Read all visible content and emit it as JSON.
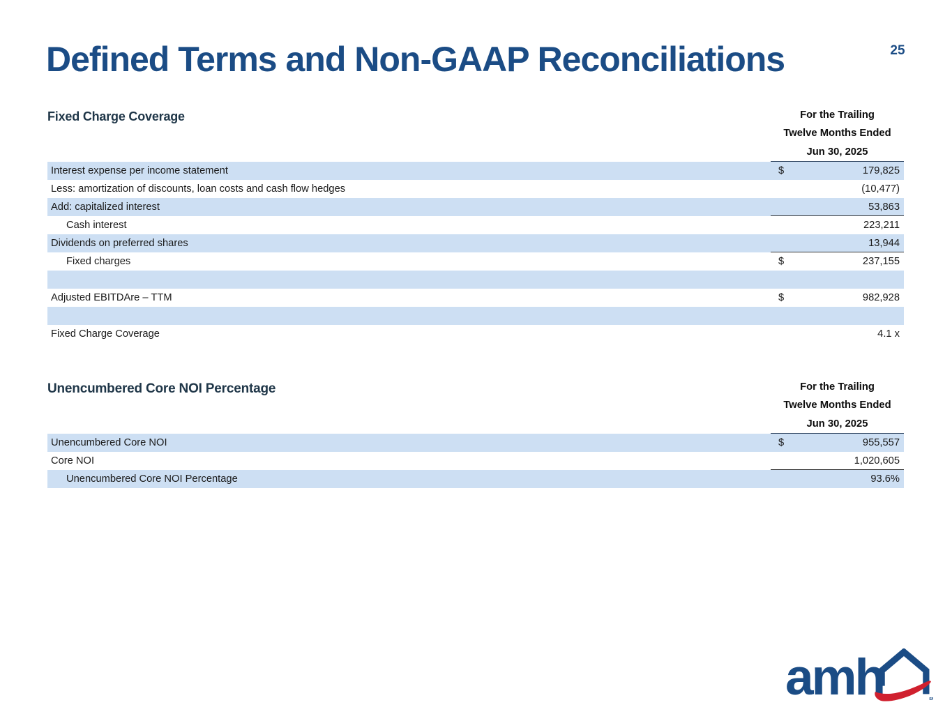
{
  "page": {
    "title": "Defined Terms and Non-GAAP Reconciliations",
    "number": "25"
  },
  "colors": {
    "accent_navy": "#1B4C85",
    "section_heading": "#1F3648",
    "row_band_blue": "#CDDFF3",
    "logo_red": "#D0202E"
  },
  "tables": [
    {
      "title": "Fixed Charge Coverage",
      "period_header": [
        "For the Trailing",
        "Twelve Months Ended",
        "Jun 30, 2025"
      ],
      "rows": [
        {
          "label": "Interest expense per income statement",
          "currency": "$",
          "value": "179,825",
          "shade": true,
          "indent": false,
          "rule_below": false
        },
        {
          "label": "Less: amortization of discounts, loan costs and cash flow hedges",
          "currency": "",
          "value": "(10,477)",
          "shade": false,
          "indent": false,
          "rule_below": false
        },
        {
          "label": "Add: capitalized interest",
          "currency": "",
          "value": "53,863",
          "shade": true,
          "indent": false,
          "rule_below": true
        },
        {
          "label": "Cash interest",
          "currency": "",
          "value": "223,211",
          "shade": false,
          "indent": true,
          "rule_below": false
        },
        {
          "label": "Dividends on preferred shares",
          "currency": "",
          "value": "13,944",
          "shade": true,
          "indent": false,
          "rule_below": true
        },
        {
          "label": "Fixed charges",
          "currency": "$",
          "value": "237,155",
          "shade": false,
          "indent": true,
          "rule_below": false
        },
        {
          "label": "",
          "currency": "",
          "value": "",
          "shade": true,
          "indent": false,
          "rule_below": false
        },
        {
          "label": "Adjusted EBITDAre – TTM",
          "currency": "$",
          "value": "982,928",
          "shade": false,
          "indent": false,
          "rule_below": false
        },
        {
          "label": "",
          "currency": "",
          "value": "",
          "shade": true,
          "indent": false,
          "rule_below": false
        },
        {
          "label": "Fixed Charge Coverage",
          "currency": "",
          "value": "4.1 x",
          "shade": false,
          "indent": false,
          "rule_below": false
        }
      ]
    },
    {
      "title": "Unencumbered Core NOI Percentage",
      "period_header": [
        "For the Trailing",
        "Twelve Months Ended",
        "Jun 30, 2025"
      ],
      "rows": [
        {
          "label": "Unencumbered Core NOI",
          "currency": "$",
          "value": "955,557",
          "shade": true,
          "indent": false,
          "rule_below": false
        },
        {
          "label": "Core NOI",
          "currency": "",
          "value": "1,020,605",
          "shade": false,
          "indent": false,
          "rule_below": true
        },
        {
          "label": "Unencumbered Core NOI Percentage",
          "currency": "",
          "value": "93.6%",
          "shade": true,
          "indent": true,
          "rule_below": false
        }
      ]
    }
  ],
  "logo": {
    "text": "amh",
    "service_mark": "SM"
  }
}
